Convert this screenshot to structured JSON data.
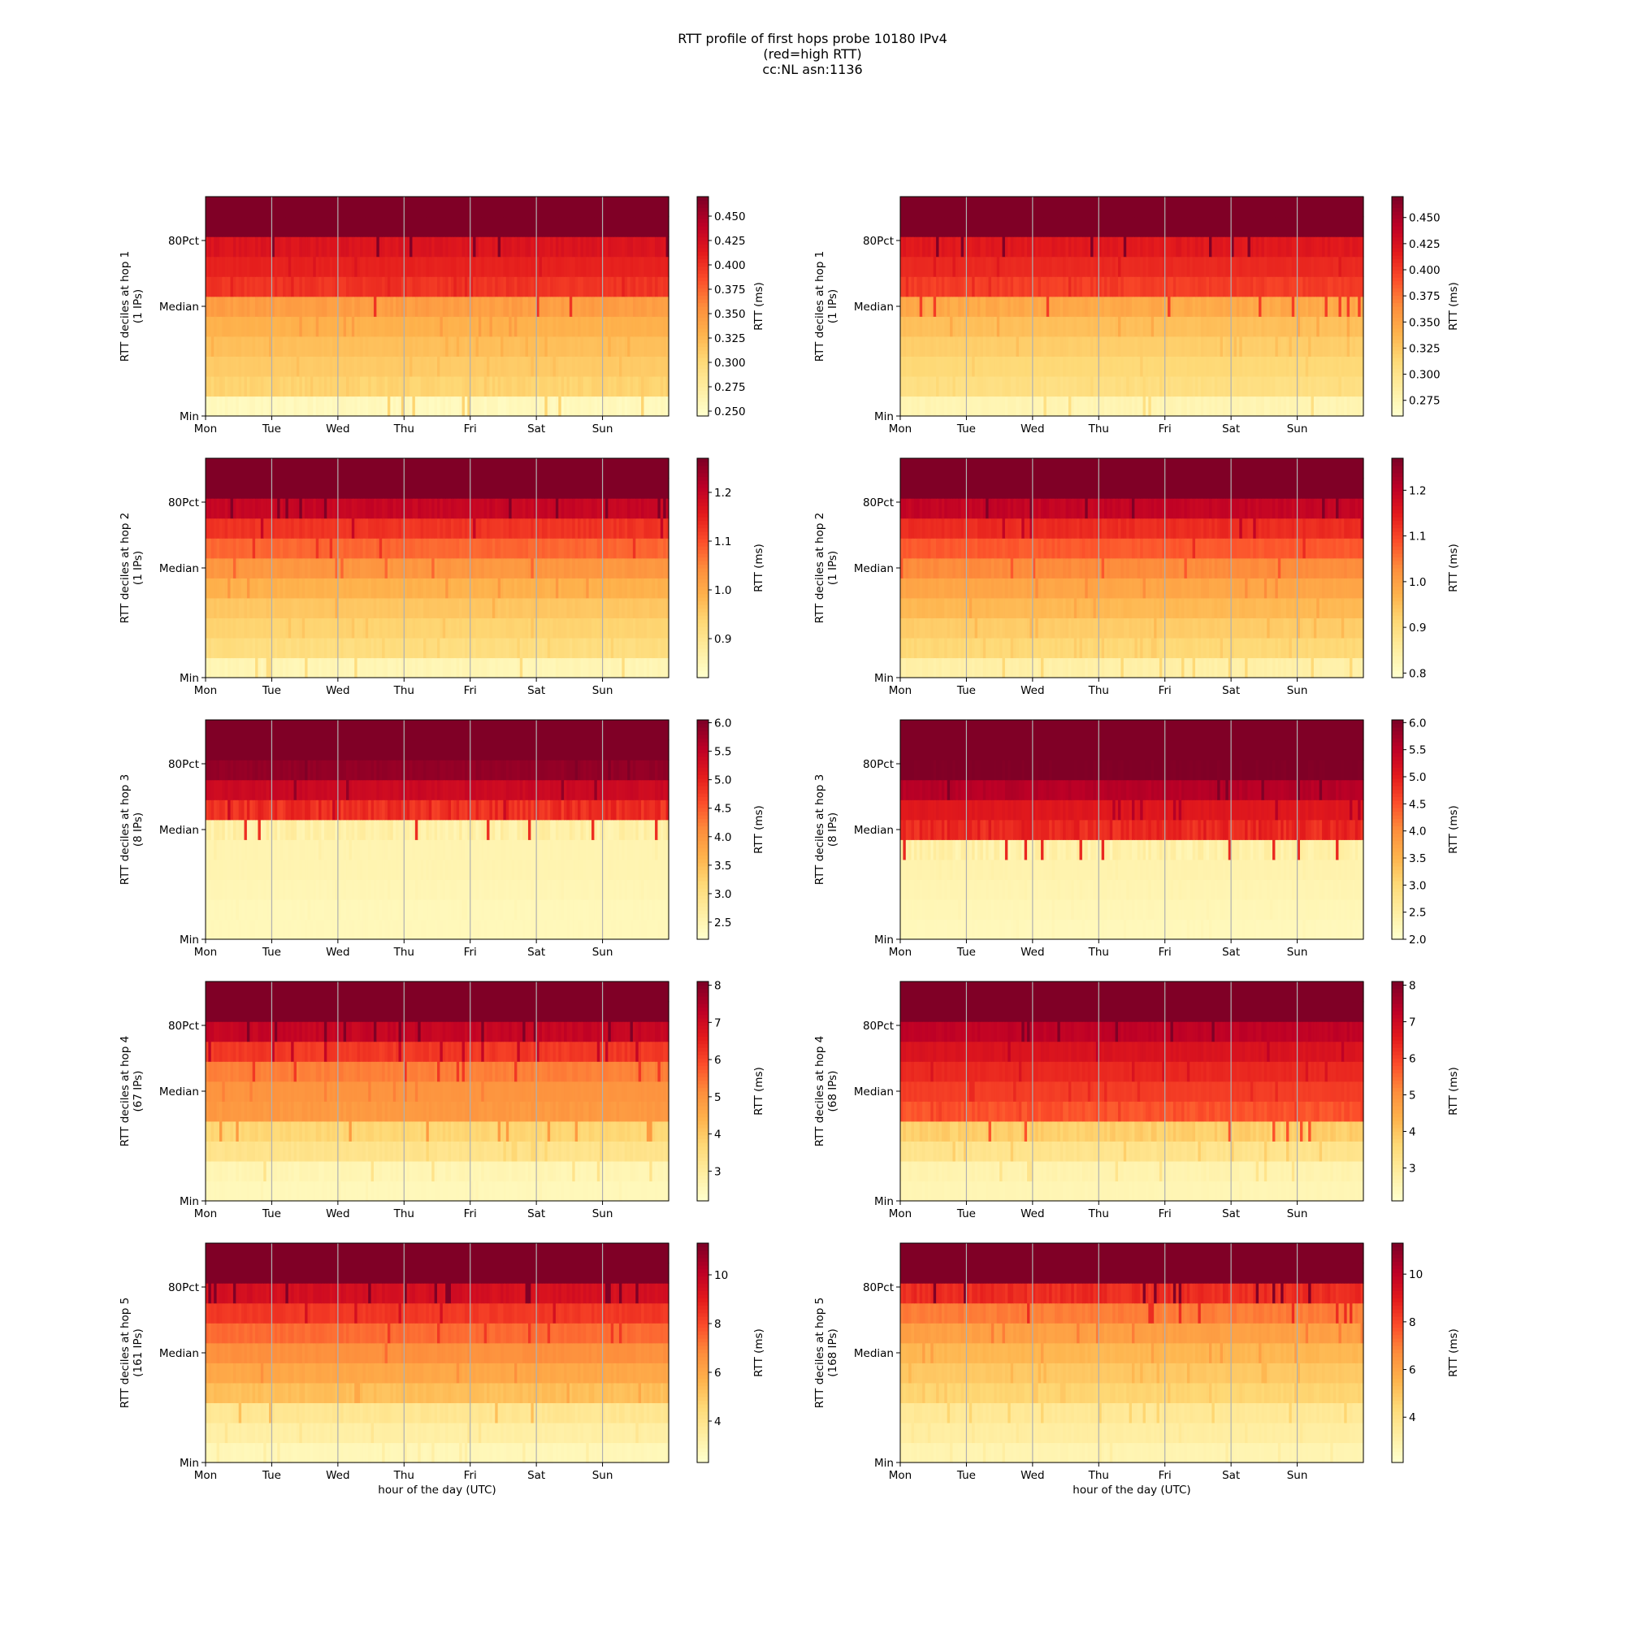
{
  "figure": {
    "title_lines": [
      "RTT profile of first hops probe 10180 IPv4",
      "(red=high RTT)",
      "cc:NL asn:1136"
    ]
  },
  "chart_data": [
    {
      "type": "heatmap",
      "panel": "hop1-left",
      "ylabel_lines": [
        "RTT deciles at hop 1",
        "(1 IPs)"
      ],
      "x_ticks": [
        "Mon",
        "Tue",
        "Wed",
        "Thu",
        "Fri",
        "Sat",
        "Sun"
      ],
      "y_ticks": [
        "Min",
        "Median",
        "80Pct"
      ],
      "xlabel": "",
      "colorbar": {
        "label": "RTT (ms)",
        "ticks": [
          "0.250",
          "0.275",
          "0.300",
          "0.325",
          "0.350",
          "0.375",
          "0.400",
          "0.425",
          "0.450"
        ],
        "min": 0.245,
        "max": 0.47
      },
      "decile_levels": [
        0.255,
        0.305,
        0.312,
        0.32,
        0.33,
        0.345,
        0.4,
        0.41,
        0.42,
        0.47,
        0.47
      ],
      "grid": "x-only",
      "colormap": "YlOrRd"
    },
    {
      "type": "heatmap",
      "panel": "hop1-right",
      "ylabel_lines": [
        "RTT deciles at hop 1",
        "(1 IPs)"
      ],
      "x_ticks": [
        "Mon",
        "Tue",
        "Wed",
        "Thu",
        "Fri",
        "Sat",
        "Sun"
      ],
      "y_ticks": [
        "Min",
        "Median",
        "80Pct"
      ],
      "xlabel": "",
      "colorbar": {
        "label": "RTT (ms)",
        "ticks": [
          "0.275",
          "0.300",
          "0.325",
          "0.350",
          "0.375",
          "0.400",
          "0.425",
          "0.450"
        ],
        "min": 0.26,
        "max": 0.47
      },
      "decile_levels": [
        0.275,
        0.305,
        0.312,
        0.32,
        0.33,
        0.345,
        0.4,
        0.41,
        0.42,
        0.47,
        0.47
      ],
      "grid": "x-only",
      "colormap": "YlOrRd"
    },
    {
      "type": "heatmap",
      "panel": "hop2-left",
      "ylabel_lines": [
        "RTT deciles at hop 2",
        "(1 IPs)"
      ],
      "x_ticks": [
        "Mon",
        "Tue",
        "Wed",
        "Thu",
        "Fri",
        "Sat",
        "Sun"
      ],
      "y_ticks": [
        "Min",
        "Median",
        "80Pct"
      ],
      "xlabel": "",
      "colorbar": {
        "label": "RTT (ms)",
        "ticks": [
          "0.9",
          "1.0",
          "1.1",
          "1.2"
        ],
        "min": 0.82,
        "max": 1.27
      },
      "decile_levels": [
        0.85,
        0.92,
        0.94,
        0.96,
        0.99,
        1.03,
        1.08,
        1.13,
        1.2,
        1.27,
        1.27
      ],
      "grid": "x-only",
      "colormap": "YlOrRd"
    },
    {
      "type": "heatmap",
      "panel": "hop2-right",
      "ylabel_lines": [
        "RTT deciles at hop 2",
        "(1 IPs)"
      ],
      "x_ticks": [
        "Mon",
        "Tue",
        "Wed",
        "Thu",
        "Fri",
        "Sat",
        "Sun"
      ],
      "y_ticks": [
        "Min",
        "Median",
        "80Pct"
      ],
      "xlabel": "",
      "colorbar": {
        "label": "RTT (ms)",
        "ticks": [
          "0.8",
          "0.9",
          "1.0",
          "1.1",
          "1.2"
        ],
        "min": 0.79,
        "max": 1.27
      },
      "decile_levels": [
        0.84,
        0.91,
        0.93,
        0.96,
        0.99,
        1.03,
        1.08,
        1.13,
        1.2,
        1.27,
        1.27
      ],
      "grid": "x-only",
      "colormap": "YlOrRd"
    },
    {
      "type": "heatmap",
      "panel": "hop3-left",
      "ylabel_lines": [
        "RTT deciles at hop 3",
        "(8 IPs)"
      ],
      "x_ticks": [
        "Mon",
        "Tue",
        "Wed",
        "Thu",
        "Fri",
        "Sat",
        "Sun"
      ],
      "y_ticks": [
        "Min",
        "Median",
        "80Pct"
      ],
      "xlabel": "",
      "colorbar": {
        "label": "RTT (ms)",
        "ticks": [
          "2.5",
          "3.0",
          "3.5",
          "4.0",
          "4.5",
          "5.0",
          "5.5",
          "6.0"
        ],
        "min": 2.2,
        "max": 6.05
      },
      "decile_levels": [
        2.4,
        2.4,
        2.45,
        2.5,
        2.5,
        2.6,
        4.9,
        5.4,
        5.9,
        6.05,
        6.05
      ],
      "grid": "x-only",
      "colormap": "YlOrRd"
    },
    {
      "type": "heatmap",
      "panel": "hop3-right",
      "ylabel_lines": [
        "RTT deciles at hop 3",
        "(8 IPs)"
      ],
      "x_ticks": [
        "Mon",
        "Tue",
        "Wed",
        "Thu",
        "Fri",
        "Sat",
        "Sun"
      ],
      "y_ticks": [
        "Min",
        "Median",
        "80Pct"
      ],
      "xlabel": "",
      "colorbar": {
        "label": "RTT (ms)",
        "ticks": [
          "2.0",
          "2.5",
          "3.0",
          "3.5",
          "4.0",
          "4.5",
          "5.0",
          "5.5",
          "6.0"
        ],
        "min": 2.0,
        "max": 6.05
      },
      "decile_levels": [
        2.2,
        2.25,
        2.3,
        2.35,
        2.4,
        4.9,
        5.1,
        5.6,
        6.05,
        6.05,
        6.05
      ],
      "grid": "x-only",
      "colormap": "YlOrRd"
    },
    {
      "type": "heatmap",
      "panel": "hop4-left",
      "ylabel_lines": [
        "RTT deciles at hop 4",
        "(67 IPs)"
      ],
      "x_ticks": [
        "Mon",
        "Tue",
        "Wed",
        "Thu",
        "Fri",
        "Sat",
        "Sun"
      ],
      "y_ticks": [
        "Min",
        "Median",
        "80Pct"
      ],
      "xlabel": "",
      "colorbar": {
        "label": "RTT (ms)",
        "ticks": [
          "3",
          "4",
          "5",
          "6",
          "7",
          "8"
        ],
        "min": 2.2,
        "max": 8.1
      },
      "decile_levels": [
        2.5,
        2.6,
        3.3,
        3.7,
        4.9,
        5.0,
        5.3,
        6.2,
        7.2,
        8.1,
        8.1
      ],
      "grid": "x-only",
      "colormap": "YlOrRd"
    },
    {
      "type": "heatmap",
      "panel": "hop4-right",
      "ylabel_lines": [
        "RTT deciles at hop 4",
        "(68 IPs)"
      ],
      "x_ticks": [
        "Mon",
        "Tue",
        "Wed",
        "Thu",
        "Fri",
        "Sat",
        "Sun"
      ],
      "y_ticks": [
        "Min",
        "Median",
        "80Pct"
      ],
      "xlabel": "",
      "colorbar": {
        "label": "RTT (ms)",
        "ticks": [
          "3",
          "4",
          "5",
          "6",
          "7",
          "8"
        ],
        "min": 2.1,
        "max": 8.1
      },
      "decile_levels": [
        2.5,
        2.6,
        3.2,
        3.8,
        5.8,
        6.1,
        6.4,
        6.8,
        7.3,
        8.1,
        8.1
      ],
      "grid": "x-only",
      "colormap": "YlOrRd"
    },
    {
      "type": "heatmap",
      "panel": "hop5-left",
      "ylabel_lines": [
        "RTT deciles at hop 5",
        "(161 IPs)"
      ],
      "x_ticks": [
        "Mon",
        "Tue",
        "Wed",
        "Thu",
        "Fri",
        "Sat",
        "Sun"
      ],
      "y_ticks": [
        "Min",
        "Median",
        "80Pct"
      ],
      "xlabel": "hour of the day (UTC)",
      "colorbar": {
        "label": "RTT (ms)",
        "ticks": [
          "4",
          "6",
          "8",
          "10"
        ],
        "min": 2.3,
        "max": 11.3
      },
      "decile_levels": [
        2.8,
        3.3,
        3.8,
        5.3,
        6.0,
        6.7,
        7.4,
        8.4,
        9.5,
        11.3,
        11.3
      ],
      "grid": "x-only",
      "colormap": "YlOrRd"
    },
    {
      "type": "heatmap",
      "panel": "hop5-right",
      "ylabel_lines": [
        "RTT deciles at hop 5",
        "(168 IPs)"
      ],
      "x_ticks": [
        "Mon",
        "Tue",
        "Wed",
        "Thu",
        "Fri",
        "Sat",
        "Sun"
      ],
      "y_ticks": [
        "Min",
        "Median",
        "80Pct"
      ],
      "xlabel": "hour of the day (UTC)",
      "colorbar": {
        "label": "RTT (ms)",
        "ticks": [
          "4",
          "6",
          "8",
          "10"
        ],
        "min": 2.1,
        "max": 11.3
      },
      "decile_levels": [
        2.8,
        3.2,
        3.5,
        4.5,
        4.9,
        5.4,
        6.1,
        7.0,
        8.6,
        11.3,
        11.3
      ],
      "grid": "x-only",
      "colormap": "YlOrRd"
    }
  ]
}
